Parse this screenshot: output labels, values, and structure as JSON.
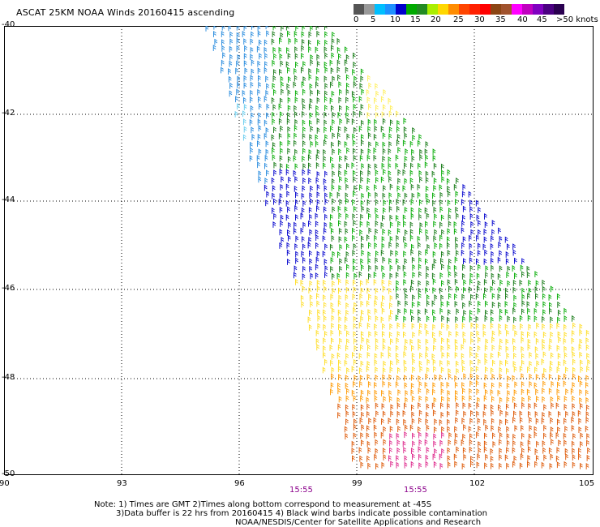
{
  "title": "ASCAT 25KM NOAA Winds 20160415 ascending",
  "colorbar": {
    "colors": [
      "#555555",
      "#999999",
      "#00bfff",
      "#1e90ff",
      "#0000cd",
      "#00aa00",
      "#228b22",
      "#aaee00",
      "#ffd700",
      "#ff8c00",
      "#ff4500",
      "#ff2000",
      "#ff0000",
      "#8b4513",
      "#a0522d",
      "#ff00ff",
      "#c000c0",
      "#8000c0",
      "#4b0082",
      "#2a0050"
    ],
    "labels": [
      "0",
      "5",
      "10",
      "15",
      "20",
      "25",
      "30",
      "35",
      "40",
      "45",
      ">50 knots"
    ]
  },
  "axes": {
    "y_labels": [
      "-40",
      "-42",
      "-44",
      "-46",
      "-48",
      "-50"
    ],
    "x_labels": [
      "90",
      "93",
      "96",
      "99",
      "102",
      "105"
    ]
  },
  "pass_times": [
    "15:55",
    "15:55"
  ],
  "notes": [
    "Note: 1) Times are GMT 2)Times along bottom correspond to measurement at -45S",
    "3)Data buffer is 22 hrs from 20160415 4) Black wind barbs indicate possible contamination",
    "NOAA/NESDIS/Center for Satellite Applications and Research"
  ],
  "swath": {
    "lat_range": [
      -50,
      -40
    ],
    "lon_range": [
      90,
      105
    ],
    "speed_regions": [
      {
        "color": "#33bbee",
        "label": "10"
      },
      {
        "color": "#0000cc",
        "label": "15"
      },
      {
        "color": "#00aa00",
        "label": "20"
      },
      {
        "color": "#ffee44",
        "label": "25"
      },
      {
        "color": "#ff9900",
        "label": "30"
      },
      {
        "color": "#dd4400",
        "label": "35"
      }
    ]
  }
}
